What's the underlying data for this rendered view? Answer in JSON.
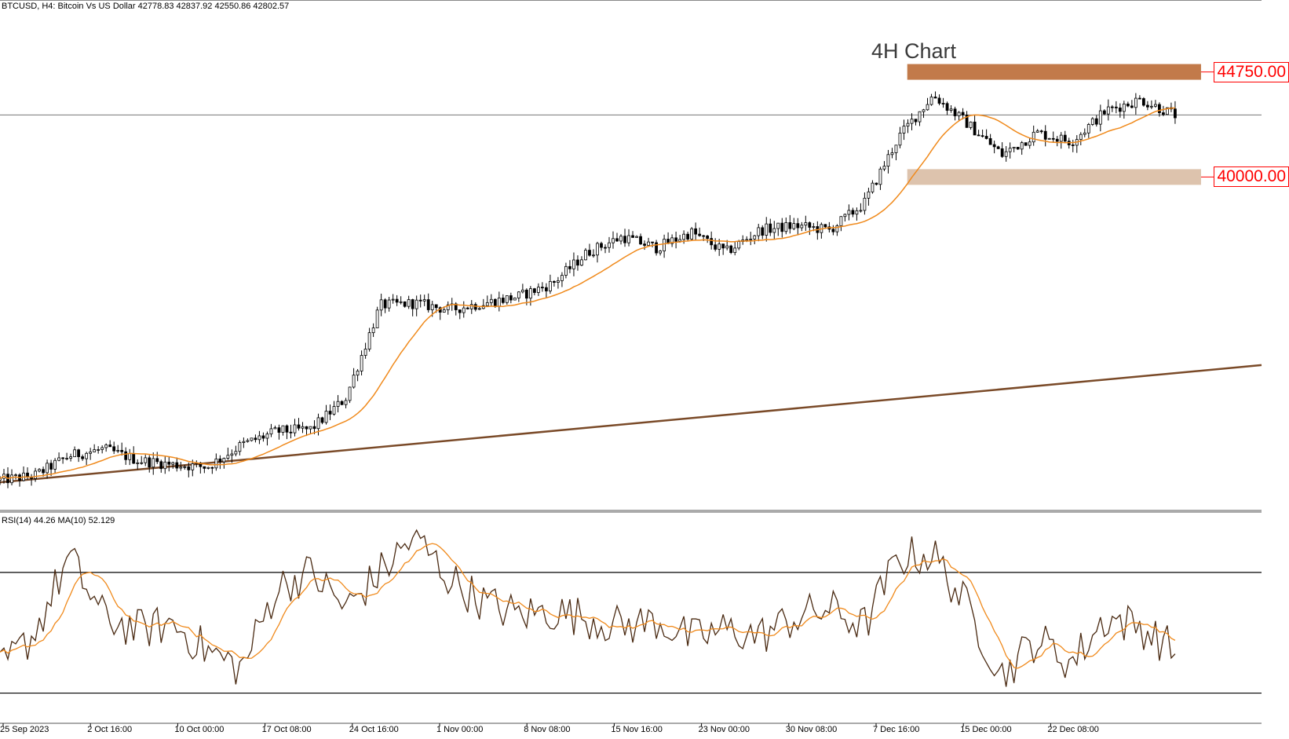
{
  "header": {
    "symbol_line": "BTCUSD, H4:  Bitcoin Vs US Dollar  42778.83 42837.92 42550.86 42802.57"
  },
  "rsi_panel": {
    "label": "RSI(14) 44.26 MA(10) 52.129",
    "upper_level": 70,
    "lower_level": 30,
    "current_rsi": 44.26,
    "current_ma": 52.129
  },
  "chart_data": {
    "type": "candlestick",
    "title": "4H Chart",
    "symbol": "BTCUSD",
    "timeframe": "H4",
    "x_ticks": [
      "25 Sep 2023",
      "2 Oct 16:00",
      "10 Oct 00:00",
      "17 Oct 08:00",
      "24 Oct 16:00",
      "1 Nov 00:00",
      "8 Nov 08:00",
      "15 Nov 16:00",
      "23 Nov 00:00",
      "30 Nov 08:00",
      "7 Dec 16:00",
      "15 Dec 00:00",
      "22 Dec 08:00"
    ],
    "ylim": [
      25000,
      48000
    ],
    "levels": [
      {
        "label": "44750.00",
        "value": 44750,
        "color": "#c27a4a"
      },
      {
        "label": "40000.00",
        "value": 40000,
        "color": "#ddc3ad"
      }
    ],
    "current_price_line": 42802.57,
    "ohlc_last": {
      "open": 42778.83,
      "high": 42837.92,
      "low": 42550.86,
      "close": 42802.57
    },
    "price_path": [
      [
        0,
        26300
      ],
      [
        4,
        26500
      ],
      [
        8,
        27400
      ],
      [
        12,
        27700
      ],
      [
        16,
        27200
      ],
      [
        20,
        27000
      ],
      [
        24,
        26900
      ],
      [
        28,
        27900
      ],
      [
        32,
        28500
      ],
      [
        36,
        28600
      ],
      [
        40,
        30000
      ],
      [
        44,
        34200
      ],
      [
        48,
        34300
      ],
      [
        52,
        34000
      ],
      [
        56,
        34300
      ],
      [
        60,
        34600
      ],
      [
        64,
        35200
      ],
      [
        68,
        36600
      ],
      [
        72,
        37300
      ],
      [
        76,
        36800
      ],
      [
        80,
        37500
      ],
      [
        84,
        36600
      ],
      [
        88,
        37600
      ],
      [
        92,
        37800
      ],
      [
        96,
        37600
      ],
      [
        100,
        38800
      ],
      [
        104,
        41800
      ],
      [
        108,
        43700
      ],
      [
        112,
        42400
      ],
      [
        116,
        41000
      ],
      [
        120,
        42000
      ],
      [
        124,
        41600
      ],
      [
        128,
        43000
      ],
      [
        132,
        43500
      ],
      [
        136,
        42800
      ]
    ],
    "trendline": {
      "from": [
        0,
        26200
      ],
      "to": [
        146,
        31500
      ]
    },
    "rsi_series": [
      [
        0,
        37
      ],
      [
        4,
        50
      ],
      [
        8,
        75
      ],
      [
        12,
        55
      ],
      [
        16,
        51
      ],
      [
        20,
        53
      ],
      [
        24,
        44
      ],
      [
        28,
        38
      ],
      [
        32,
        65
      ],
      [
        36,
        70
      ],
      [
        40,
        58
      ],
      [
        44,
        70
      ],
      [
        48,
        82
      ],
      [
        52,
        68
      ],
      [
        56,
        60
      ],
      [
        60,
        56
      ],
      [
        64,
        57
      ],
      [
        68,
        55
      ],
      [
        72,
        52
      ],
      [
        76,
        54
      ],
      [
        80,
        48
      ],
      [
        84,
        51
      ],
      [
        88,
        49
      ],
      [
        92,
        55
      ],
      [
        96,
        58
      ],
      [
        100,
        52
      ],
      [
        104,
        75
      ],
      [
        108,
        76
      ],
      [
        112,
        58
      ],
      [
        116,
        36
      ],
      [
        120,
        48
      ],
      [
        124,
        40
      ],
      [
        128,
        55
      ],
      [
        132,
        52
      ],
      [
        136,
        44
      ]
    ]
  }
}
